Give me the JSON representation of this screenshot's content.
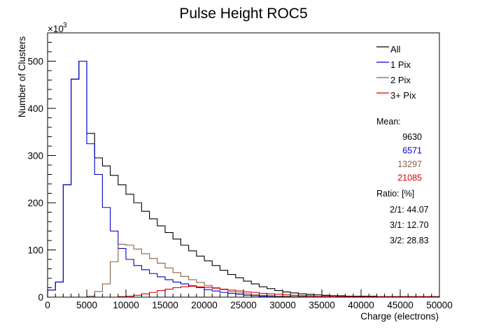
{
  "chart_data": {
    "type": "line",
    "style": "step-histogram",
    "title": "Pulse Height ROC5",
    "xlabel": "Charge (electrons)",
    "ylabel": "Number of Clusters",
    "y_multiplier_label": "×10",
    "y_multiplier_exp": "3",
    "xlim": [
      0,
      50000
    ],
    "ylim": [
      0,
      560
    ],
    "bin_width": 1000,
    "x_ticks": [
      "0",
      "5000",
      "10000",
      "15000",
      "20000",
      "25000",
      "30000",
      "35000",
      "40000",
      "45000",
      "50000"
    ],
    "y_ticks": [
      "0",
      "100",
      "200",
      "300",
      "400",
      "500"
    ],
    "legend_position": "top-right",
    "series": [
      {
        "name": "All",
        "color": "#000000",
        "values": [
          15,
          32,
          238,
          462,
          500,
          347,
          295,
          278,
          258,
          238,
          218,
          200,
          182,
          166,
          151,
          137,
          123,
          110,
          98,
          87,
          77,
          67,
          57,
          48,
          41,
          34,
          28,
          22,
          18,
          14,
          11,
          9,
          7,
          6,
          5,
          4,
          3,
          3,
          2,
          2,
          2,
          2,
          1,
          1,
          1,
          1,
          1,
          1,
          1,
          1
        ]
      },
      {
        "name": "1 Pix",
        "color": "#0000cc",
        "values": [
          15,
          32,
          238,
          462,
          500,
          325,
          260,
          190,
          140,
          103,
          80,
          67,
          58,
          50,
          43,
          37,
          32,
          28,
          24,
          20,
          16,
          13,
          10,
          8,
          6,
          4,
          3,
          2,
          2,
          1,
          1,
          1,
          1,
          0,
          0,
          0,
          0,
          0,
          0,
          0,
          0,
          0,
          0,
          0,
          0,
          0,
          0,
          0,
          0,
          0
        ]
      },
      {
        "name": "2 Pix",
        "color": "#8b6045",
        "values": [
          0,
          0,
          0,
          0,
          0,
          2,
          12,
          28,
          75,
          112,
          110,
          102,
          92,
          82,
          72,
          62,
          52,
          44,
          37,
          31,
          25,
          20,
          16,
          12,
          9,
          7,
          5,
          4,
          3,
          2,
          2,
          1,
          1,
          1,
          0,
          0,
          0,
          0,
          0,
          0,
          0,
          0,
          0,
          0,
          0,
          0,
          0,
          0,
          0,
          0
        ]
      },
      {
        "name": "3+ Pix",
        "color": "#dd0000",
        "values": [
          0,
          0,
          0,
          0,
          0,
          0,
          0,
          0,
          0,
          1,
          2,
          4,
          7,
          10,
          14,
          17,
          20,
          22,
          23,
          22,
          21,
          19,
          17,
          15,
          13,
          11,
          10,
          8,
          7,
          6,
          5,
          4,
          3,
          3,
          2,
          2,
          2,
          1,
          1,
          1,
          1,
          1,
          1,
          1,
          1,
          1,
          1,
          1,
          1,
          1
        ]
      }
    ],
    "stats": {
      "mean_label": "Mean:",
      "means": [
        {
          "value": "9630",
          "color": "#000000"
        },
        {
          "value": "6571",
          "color": "#0000cc"
        },
        {
          "value": "13297",
          "color": "#8b6045"
        },
        {
          "value": "21085",
          "color": "#dd0000"
        }
      ],
      "ratio_label": "Ratio: [%]",
      "ratios": [
        "2/1: 44.07",
        "3/1: 12.70",
        "3/2: 28.83"
      ]
    }
  }
}
